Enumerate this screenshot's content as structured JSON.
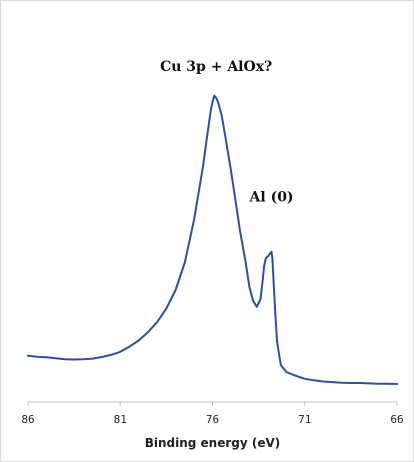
{
  "chart_data": {
    "type": "line",
    "title": "",
    "xlabel": "Binding energy (eV)",
    "ylabel": "",
    "x_reversed": true,
    "xlim": [
      86,
      66
    ],
    "ylim": [
      0,
      1
    ],
    "y_axis_labels": "none",
    "grid": false,
    "legend": "none",
    "x_tick_labels": [
      "86",
      "81",
      "76",
      "71",
      "66"
    ],
    "x_tick_values": [
      86,
      81,
      76,
      71,
      66
    ],
    "series": [
      {
        "color": "#2e4ea3",
        "points": [
          [
            86.0,
            0.115
          ],
          [
            85.5,
            0.112
          ],
          [
            85.0,
            0.11
          ],
          [
            84.5,
            0.107
          ],
          [
            84.0,
            0.104
          ],
          [
            83.5,
            0.103
          ],
          [
            83.0,
            0.104
          ],
          [
            82.5,
            0.106
          ],
          [
            82.0,
            0.111
          ],
          [
            81.5,
            0.118
          ],
          [
            81.0,
            0.128
          ],
          [
            80.5,
            0.145
          ],
          [
            80.0,
            0.165
          ],
          [
            79.5,
            0.192
          ],
          [
            79.0,
            0.225
          ],
          [
            78.5,
            0.27
          ],
          [
            78.0,
            0.33
          ],
          [
            77.5,
            0.42
          ],
          [
            77.0,
            0.56
          ],
          [
            76.5,
            0.74
          ],
          [
            76.3,
            0.83
          ],
          [
            76.1,
            0.915
          ],
          [
            76.0,
            0.945
          ],
          [
            75.9,
            0.965
          ],
          [
            75.8,
            0.958
          ],
          [
            75.7,
            0.945
          ],
          [
            75.5,
            0.9
          ],
          [
            75.3,
            0.83
          ],
          [
            75.0,
            0.72
          ],
          [
            74.5,
            0.52
          ],
          [
            74.2,
            0.42
          ],
          [
            74.0,
            0.34
          ],
          [
            73.8,
            0.295
          ],
          [
            73.6,
            0.275
          ],
          [
            73.4,
            0.3
          ],
          [
            73.3,
            0.35
          ],
          [
            73.2,
            0.41
          ],
          [
            73.1,
            0.435
          ],
          [
            73.0,
            0.44
          ],
          [
            72.9,
            0.448
          ],
          [
            72.8,
            0.455
          ],
          [
            72.75,
            0.43
          ],
          [
            72.7,
            0.37
          ],
          [
            72.6,
            0.26
          ],
          [
            72.5,
            0.16
          ],
          [
            72.3,
            0.085
          ],
          [
            72.0,
            0.062
          ],
          [
            71.5,
            0.05
          ],
          [
            71.0,
            0.04
          ],
          [
            70.5,
            0.035
          ],
          [
            70.0,
            0.031
          ],
          [
            69.5,
            0.029
          ],
          [
            69.0,
            0.027
          ],
          [
            68.5,
            0.026
          ],
          [
            68.0,
            0.026
          ],
          [
            67.5,
            0.025
          ],
          [
            67.0,
            0.024
          ],
          [
            66.5,
            0.024
          ],
          [
            66.0,
            0.023
          ]
        ]
      }
    ],
    "annotations": [
      {
        "text": "Cu 3p + AlOx?",
        "x": 75.8,
        "y": 1.0
      },
      {
        "text": "Al (0)",
        "x": 72.8,
        "y": 0.56
      }
    ]
  }
}
